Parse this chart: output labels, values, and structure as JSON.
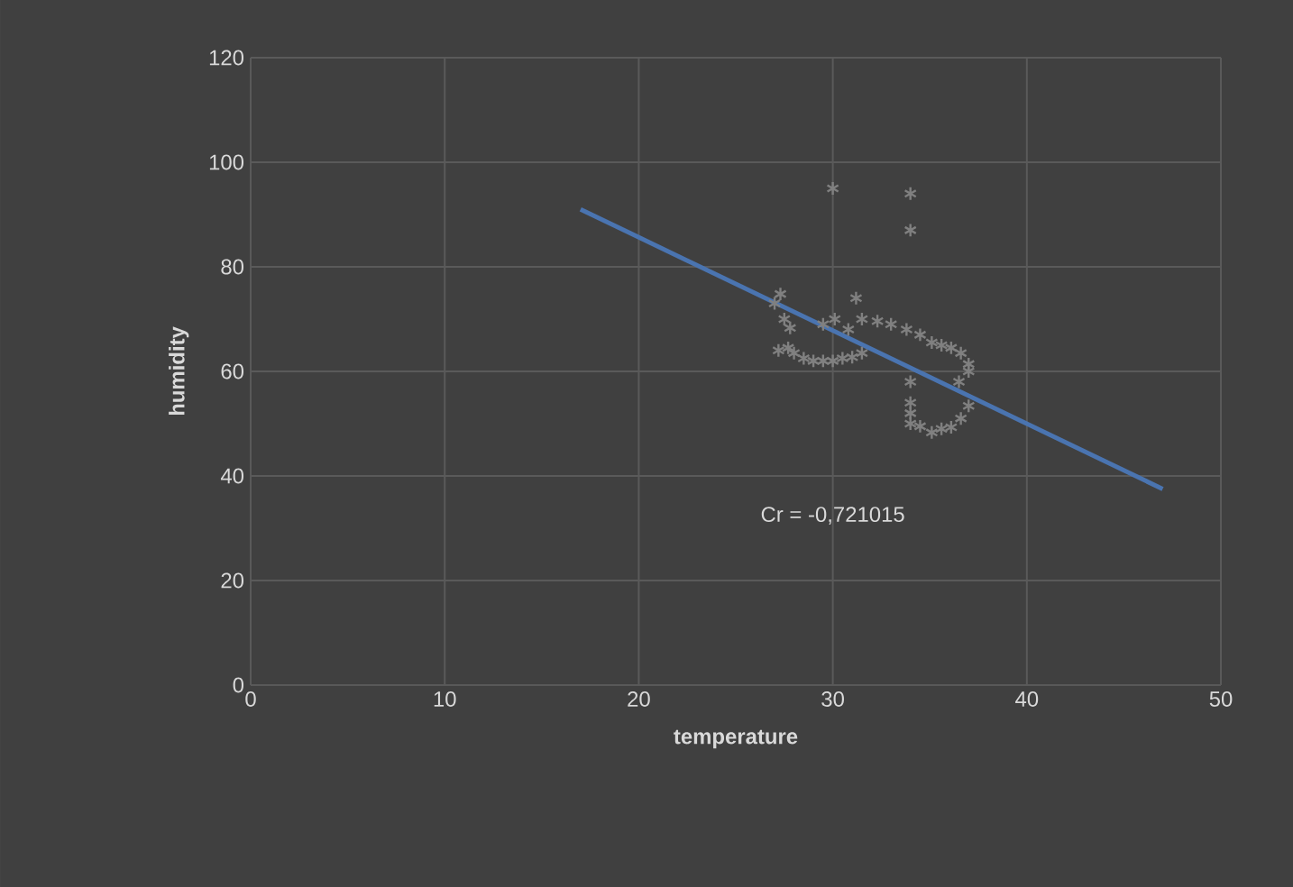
{
  "chart_data": {
    "type": "scatter",
    "xlabel": "temperature",
    "ylabel": "humidity",
    "xlim": [
      0,
      50
    ],
    "xticks": [
      0,
      10,
      20,
      30,
      40,
      50
    ],
    "ylim": [
      0,
      120
    ],
    "yticks": [
      0,
      20,
      40,
      60,
      80,
      100,
      120
    ],
    "grid": true,
    "marker": "cross",
    "annotations": [
      "Cr = -0,721015"
    ],
    "series": [
      {
        "color": "#808080",
        "x": [
          27.3,
          27.0,
          27.5,
          27.8,
          27.7,
          27.2,
          28.0,
          28.5,
          29.0,
          29.5,
          30.0,
          30.5,
          31.0,
          31.5,
          30.1,
          29.5,
          31.2,
          30.8,
          31.5,
          32.3,
          33.0,
          33.8,
          34.5,
          35.1,
          35.6,
          36.1,
          36.6,
          37.0,
          37.0,
          36.5,
          34.0,
          34.0,
          34.0,
          34.0,
          34.5,
          35.1,
          35.6,
          36.1,
          36.6,
          37.0,
          30.0,
          34.0,
          34.0
        ],
        "values": [
          74.8,
          73.0,
          70.0,
          68.3,
          64.5,
          64.0,
          63.5,
          62.5,
          62.0,
          62.0,
          62.0,
          62.5,
          62.7,
          63.5,
          70.0,
          69.0,
          74.0,
          68.0,
          70.0,
          69.6,
          69.0,
          68.0,
          67.0,
          65.5,
          65.0,
          64.5,
          63.5,
          61.4,
          60.0,
          58.0,
          58.0,
          54.0,
          52.0,
          50.0,
          49.5,
          48.3,
          49.0,
          49.3,
          51.0,
          53.4,
          95.0,
          94.0,
          87.0
        ]
      },
      {
        "type": "line",
        "marker": "none",
        "color": "#4a74b0",
        "x": [
          17,
          47
        ],
        "values": [
          91,
          37.5
        ]
      }
    ]
  }
}
